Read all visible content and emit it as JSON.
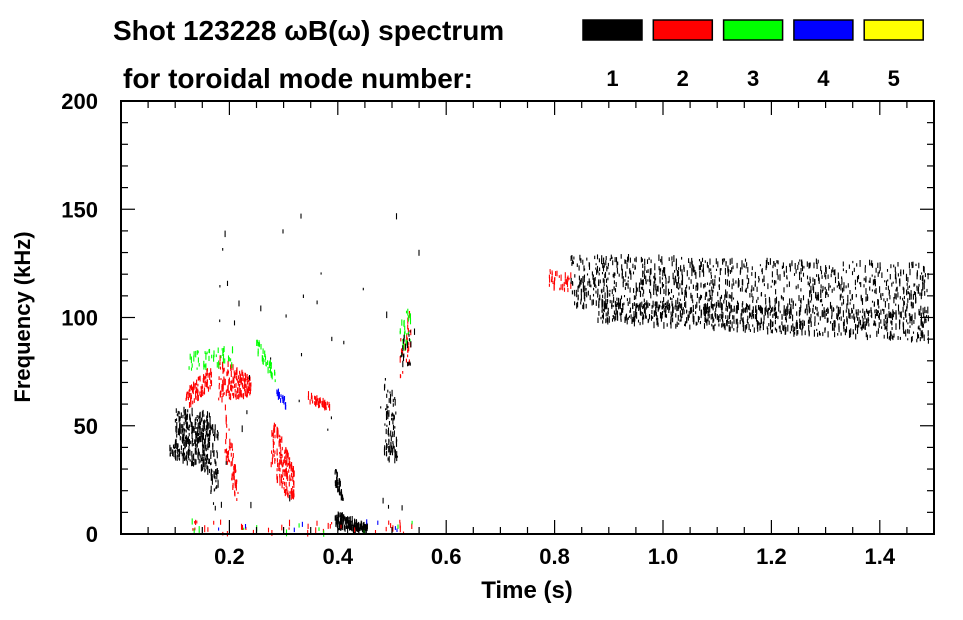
{
  "chart_data": {
    "type": "scatter",
    "title_line1": "Shot 123228 ωB(ω) spectrum",
    "title_line2": "for toroidal mode number:",
    "xlabel": "Time (s)",
    "ylabel": "Frequency (kHz)",
    "xlim": [
      0,
      1.5
    ],
    "ylim": [
      0,
      200
    ],
    "x_ticks": [
      "0.2",
      "0.4",
      "0.6",
      "0.8",
      "1.0",
      "1.2",
      "1.4"
    ],
    "x_tick_values": [
      0.2,
      0.4,
      0.6,
      0.8,
      1.0,
      1.2,
      1.4
    ],
    "y_ticks": [
      "0",
      "50",
      "100",
      "150",
      "200"
    ],
    "y_tick_values": [
      0,
      50,
      100,
      150,
      200
    ],
    "x_minor_step": 0.05,
    "y_minor_step": 10,
    "legend": [
      {
        "label": "1",
        "color": "#000000"
      },
      {
        "label": "2",
        "color": "#ff0000"
      },
      {
        "label": "3",
        "color": "#00ff00"
      },
      {
        "label": "4",
        "color": "#0000ff"
      },
      {
        "label": "5",
        "color": "#ffff00"
      }
    ],
    "regions_note_fields": [
      "t_start",
      "t_end",
      "f_low_start",
      "f_high_start",
      "f_low_end",
      "f_high_end",
      "mode",
      "count"
    ],
    "regions": [
      [
        0.1,
        0.165,
        35,
        58,
        28,
        56,
        1,
        320
      ],
      [
        0.165,
        0.18,
        11,
        52,
        12,
        50,
        1,
        60
      ],
      [
        0.09,
        0.1,
        36,
        42,
        36,
        42,
        1,
        10
      ],
      [
        0.12,
        0.167,
        58,
        66,
        68,
        78,
        2,
        90
      ],
      [
        0.18,
        0.24,
        62,
        82,
        64,
        72,
        2,
        160
      ],
      [
        0.192,
        0.216,
        35,
        60,
        12,
        25,
        2,
        60
      ],
      [
        0.125,
        0.21,
        76,
        84,
        78,
        86,
        3,
        45
      ],
      [
        0.25,
        0.285,
        84,
        90,
        70,
        76,
        3,
        40
      ],
      [
        0.286,
        0.304,
        64,
        68,
        58,
        62,
        4,
        20
      ],
      [
        0.277,
        0.32,
        25,
        56,
        15,
        30,
        2,
        160
      ],
      [
        0.345,
        0.386,
        61,
        65,
        57,
        60,
        2,
        45
      ],
      [
        0.395,
        0.41,
        22,
        31,
        15,
        20,
        1,
        40
      ],
      [
        0.395,
        0.455,
        2,
        10,
        1,
        4,
        1,
        170
      ],
      [
        0.485,
        0.51,
        35,
        74,
        33,
        60,
        1,
        80
      ],
      [
        0.515,
        0.535,
        72,
        90,
        80,
        105,
        2,
        30
      ],
      [
        0.515,
        0.535,
        80,
        100,
        90,
        108,
        3,
        25
      ],
      [
        0.515,
        0.535,
        78,
        95,
        78,
        95,
        1,
        20
      ],
      [
        0.79,
        0.83,
        113,
        122,
        112,
        120,
        2,
        35
      ],
      [
        0.83,
        1.49,
        105,
        129,
        100,
        125,
        1,
        1000
      ],
      [
        0.88,
        1.49,
        98,
        108,
        89,
        102,
        1,
        700
      ],
      [
        0.13,
        0.55,
        0,
        6,
        0,
        6,
        2,
        40
      ],
      [
        0.13,
        0.55,
        0,
        6,
        0,
        6,
        3,
        12
      ],
      [
        0.13,
        0.55,
        0,
        6,
        0,
        6,
        4,
        8
      ],
      [
        0.15,
        0.55,
        10,
        150,
        10,
        150,
        1,
        40
      ]
    ]
  }
}
